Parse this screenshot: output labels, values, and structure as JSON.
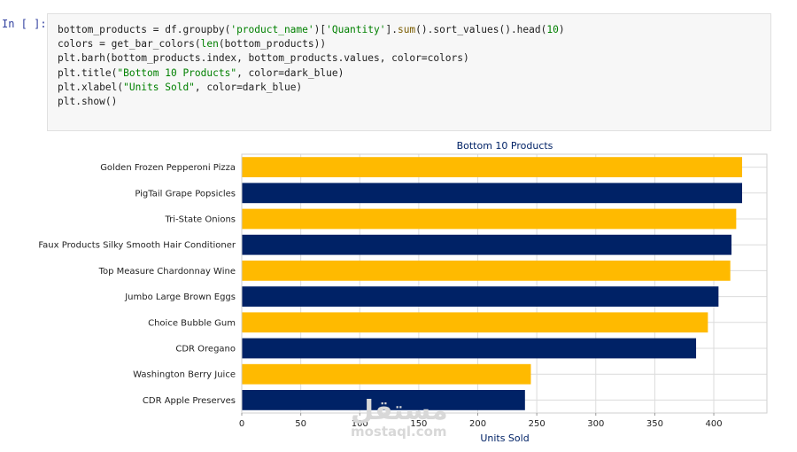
{
  "cell": {
    "prompt": "In [ ]:",
    "lines": [
      [
        {
          "t": "bottom_products = df.groupby(",
          "c": "tk-var"
        },
        {
          "t": "'product_name'",
          "c": "tk-str"
        },
        {
          "t": ")[",
          "c": "tk-var"
        },
        {
          "t": "'Quantity'",
          "c": "tk-str"
        },
        {
          "t": "].",
          "c": "tk-var"
        },
        {
          "t": "sum",
          "c": "tk-fn"
        },
        {
          "t": "().sort_values().head(",
          "c": "tk-var"
        },
        {
          "t": "10",
          "c": "tk-num"
        },
        {
          "t": ")",
          "c": "tk-var"
        }
      ],
      [
        {
          "t": "colors = get_bar_colors(",
          "c": "tk-var"
        },
        {
          "t": "len",
          "c": "tk-kw"
        },
        {
          "t": "(bottom_products))",
          "c": "tk-var"
        }
      ],
      [
        {
          "t": "plt.barh(bottom_products.index, bottom_products.values, color=colors)",
          "c": "tk-var"
        }
      ],
      [
        {
          "t": "plt.title(",
          "c": "tk-var"
        },
        {
          "t": "\"Bottom 10 Products\"",
          "c": "tk-str"
        },
        {
          "t": ", color=dark_blue)",
          "c": "tk-var"
        }
      ],
      [
        {
          "t": "plt.xlabel(",
          "c": "tk-var"
        },
        {
          "t": "\"Units Sold\"",
          "c": "tk-str"
        },
        {
          "t": ", color=dark_blue)",
          "c": "tk-var"
        }
      ],
      [
        {
          "t": "plt.show()",
          "c": "tk-var"
        }
      ]
    ]
  },
  "chart_data": {
    "type": "bar",
    "orientation": "horizontal",
    "title": "Bottom 10 Products",
    "xlabel": "Units Sold",
    "ylabel": "",
    "categories": [
      "Golden Frozen Pepperoni Pizza",
      "PigTail Grape Popsicles",
      "Tri-State Onions",
      "Faux Products Silky Smooth Hair Conditioner",
      "Top Measure Chardonnay Wine",
      "Jumbo Large Brown Eggs",
      "Choice Bubble Gum",
      "CDR Oregano",
      "Washington Berry Juice",
      "CDR Apple Preserves"
    ],
    "values": [
      424,
      424,
      419,
      415,
      414,
      404,
      395,
      385,
      245,
      240
    ],
    "xlim": [
      0,
      445
    ],
    "xticks": [
      0,
      50,
      100,
      150,
      200,
      250,
      300,
      350,
      400
    ],
    "grid": true,
    "colors": [
      "#FFBA00",
      "#002266"
    ],
    "title_color": "#002266"
  },
  "watermark": {
    "arabic": "مستقل",
    "latin": "mostaql.com"
  }
}
